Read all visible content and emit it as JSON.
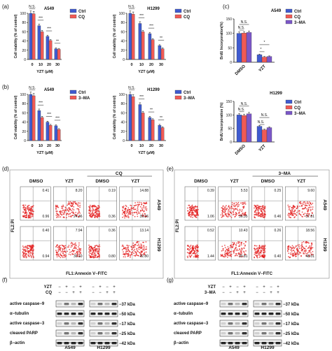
{
  "colors": {
    "blue": "#3f5bd0",
    "red": "#f05a55",
    "purple": "#7b57c8",
    "dot": "#e31b1b",
    "gel": "#111111"
  },
  "panels": [
    {
      "id": "a",
      "label": "(a)"
    },
    {
      "id": "b",
      "label": "(b)"
    },
    {
      "id": "c",
      "label": "(c)"
    },
    {
      "id": "d",
      "label": "(d)"
    },
    {
      "id": "e",
      "label": "(e)"
    },
    {
      "id": "f",
      "label": "(f)"
    },
    {
      "id": "g",
      "label": "(g)"
    }
  ],
  "chart_data": [
    {
      "panel": "a",
      "cell": "A549",
      "type": "bar",
      "xlabel": "YZT (μM)",
      "ylabel": "Cell viability (% of control)",
      "ylim": [
        0,
        100
      ],
      "yticks": [
        0,
        20,
        40,
        60,
        80,
        100
      ],
      "categories": [
        "0",
        "10",
        "20",
        "30"
      ],
      "series": [
        {
          "name": "Ctrl",
          "values": [
            100,
            73,
            50,
            23
          ]
        },
        {
          "name": "CQ",
          "values": [
            99,
            60,
            41,
            22
          ]
        }
      ],
      "sig": [
        "N.S.",
        "***",
        "***",
        "**"
      ]
    },
    {
      "panel": "a",
      "cell": "H1299",
      "type": "bar",
      "xlabel": "YZT (μM)",
      "ylabel": "Cell viability (% of control)",
      "ylim": [
        0,
        100
      ],
      "yticks": [
        0,
        20,
        40,
        60,
        80,
        100
      ],
      "categories": [
        "0",
        "10",
        "20",
        "30"
      ],
      "series": [
        {
          "name": "Ctrl",
          "values": [
            100,
            78,
            56,
            30
          ]
        },
        {
          "name": "CQ",
          "values": [
            98,
            60,
            43,
            23
          ]
        }
      ],
      "sig": [
        "N.S.",
        "***",
        "***",
        "**"
      ]
    },
    {
      "panel": "b",
      "cell": "A549",
      "type": "bar",
      "xlabel": "YZT (μM)",
      "ylabel": "Cell viability (% of control)",
      "ylim": [
        0,
        100
      ],
      "yticks": [
        0,
        20,
        40,
        60,
        80,
        100
      ],
      "categories": [
        "0",
        "10",
        "20",
        "30"
      ],
      "series": [
        {
          "name": "Ctrl",
          "values": [
            100,
            65,
            40,
            32
          ]
        },
        {
          "name": "3−MA",
          "values": [
            97,
            50,
            33,
            24
          ]
        }
      ],
      "sig": [
        "N.S.",
        "***",
        "***",
        "***"
      ]
    },
    {
      "panel": "b",
      "cell": "H1299",
      "type": "bar",
      "xlabel": "YZT (μM)",
      "ylabel": "Cell viability (% of control)",
      "ylim": [
        0,
        100
      ],
      "yticks": [
        0,
        20,
        40,
        60,
        80,
        100
      ],
      "categories": [
        "0",
        "10",
        "20",
        "30"
      ],
      "series": [
        {
          "name": "Ctrl",
          "values": [
            100,
            78,
            50,
            33
          ]
        },
        {
          "name": "3−MA",
          "values": [
            95,
            60,
            45,
            28
          ]
        }
      ],
      "sig": [
        "N.S.",
        "***",
        "**",
        "**"
      ]
    },
    {
      "panel": "c",
      "cell": "A549",
      "type": "bar",
      "ylabel": "BrdU Incorporation(%)",
      "ylim": [
        0,
        150
      ],
      "yticks": [
        0,
        50,
        100,
        150
      ],
      "categories": [
        "DMSO",
        "YZT"
      ],
      "series": [
        {
          "name": "Ctrl",
          "values": [
            100,
            26
          ]
        },
        {
          "name": "CQ",
          "values": [
            101,
            18
          ]
        },
        {
          "name": "3−MA",
          "values": [
            103,
            20
          ]
        }
      ],
      "sig": [
        "N.S.",
        "N.S.",
        "*",
        "*"
      ]
    },
    {
      "panel": "c",
      "cell": "H1299",
      "type": "bar",
      "ylabel": "BrdU Incorporation (%)",
      "ylim": [
        0,
        150
      ],
      "yticks": [
        0,
        50,
        100,
        150
      ],
      "categories": [
        "DMSO",
        "YZT"
      ],
      "series": [
        {
          "name": "Ctrl",
          "values": [
            100,
            58
          ]
        },
        {
          "name": "CQ",
          "values": [
            98,
            45
          ]
        },
        {
          "name": "3−MA",
          "values": [
            104,
            53
          ]
        }
      ],
      "sig": [
        "N.S.",
        "N.S.",
        "N.S.",
        "N.S."
      ]
    }
  ],
  "flow": {
    "xlabel": "FL1:Annexin V−FITC",
    "ylabel": "FL2:PI",
    "d": {
      "group": "CQ",
      "cols": [
        "DMSO",
        "YZT",
        "DMSO",
        "YZT"
      ],
      "rows": [
        {
          "cell": "A549",
          "q": [
            [
              "0.41",
              "0.96"
            ],
            [
              "8.20",
              "24.36"
            ],
            [
              "0.19",
              "0.36"
            ],
            [
              "14.88",
              "39.36"
            ]
          ]
        },
        {
          "cell": "H1299",
          "q": [
            [
              "0.40",
              "0.94"
            ],
            [
              "7.94",
              "30.10"
            ],
            [
              "0.36",
              "0.80"
            ],
            [
              "13.14",
              "42.80"
            ]
          ]
        }
      ]
    },
    "e": {
      "group": "3−MA",
      "cols": [
        "DMSO",
        "YZT",
        "DMSO",
        "YZT"
      ],
      "rows": [
        {
          "cell": "A549",
          "q": [
            [
              "0.39",
              "1.06"
            ],
            [
              "5.53",
              "36.35"
            ],
            [
              "0.25",
              "0.46"
            ],
            [
              "9.60",
              "57.81"
            ]
          ]
        },
        {
          "cell": "H1299",
          "q": [
            [
              "0.52",
              "1.44"
            ],
            [
              "10.43",
              "30.81"
            ],
            [
              "0.26",
              "0.40"
            ],
            [
              "18.56",
              "48.01"
            ]
          ]
        }
      ]
    }
  },
  "western": {
    "f": {
      "treat": [
        {
          "label": "YZT",
          "signs": [
            "−",
            "+",
            "−",
            "+",
            "−",
            "+",
            "−",
            "+"
          ]
        },
        {
          "label": "CQ",
          "signs": [
            "−",
            "−",
            "+",
            "+",
            "−",
            "−",
            "+",
            "+"
          ]
        }
      ],
      "bands": [
        {
          "name": "active caspase−9",
          "kda": "−37 kDa"
        },
        {
          "name": "α−tubulin",
          "kda": "−50 kDa"
        },
        {
          "name": "active caspase−3",
          "kda": "−17 kDa"
        },
        {
          "name": "cleaved PARP",
          "kda": "−25 kDa"
        },
        {
          "name": "β−actin",
          "kda": "−42 kDa"
        }
      ],
      "cells": [
        "A549",
        "H1299"
      ]
    },
    "g": {
      "treat": [
        {
          "label": "YZT",
          "signs": [
            "−",
            "+",
            "−",
            "+",
            "−",
            "+",
            "−",
            "+"
          ]
        },
        {
          "label": "3−MA",
          "signs": [
            "−",
            "−",
            "+",
            "+",
            "−",
            "−",
            "+",
            "+"
          ]
        }
      ],
      "bands": [
        {
          "name": "active caspase−9",
          "kda": "−37 kDa"
        },
        {
          "name": "α−tubulin",
          "kda": "−50 kDa"
        },
        {
          "name": "active caspase−3",
          "kda": "−17 kDa"
        },
        {
          "name": "cleaved PARP",
          "kda": "−25 kDa"
        },
        {
          "name": "β−actin",
          "kda": "−42 kDa"
        }
      ],
      "cells": [
        "A549",
        "H1299"
      ]
    }
  }
}
